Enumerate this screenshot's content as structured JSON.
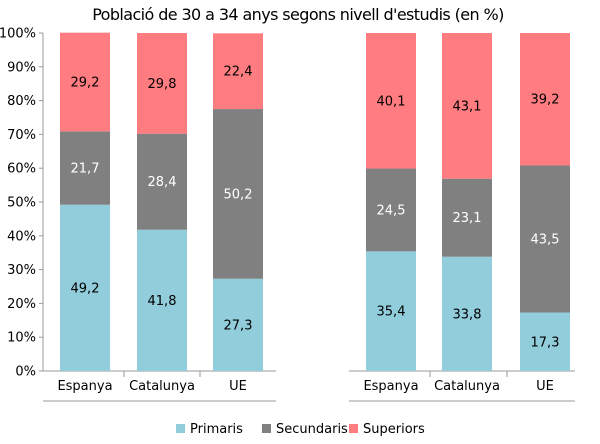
{
  "chart_data": {
    "type": "bar",
    "stacked": true,
    "percent": true,
    "title": "Població de 30 a 34 anys segons nivell d'estudis (en %)",
    "groups": [
      {
        "categories": [
          "Espanya",
          "Catalunya",
          "UE"
        ]
      },
      {
        "categories": [
          "Espanya",
          "Catalunya",
          "UE"
        ]
      }
    ],
    "series": [
      {
        "name": "Primaris",
        "color": "#92cddc",
        "values": [
          [
            49.2,
            41.8,
            27.3
          ],
          [
            35.4,
            33.8,
            17.3
          ]
        ],
        "labels": [
          [
            "49,2",
            "41,8",
            "27,3"
          ],
          [
            "35,4",
            "33,8",
            "17,3"
          ]
        ],
        "label_color": "#000000"
      },
      {
        "name": "Secundaris",
        "color": "#808080",
        "values": [
          [
            21.7,
            28.4,
            50.2
          ],
          [
            24.5,
            23.1,
            43.5
          ]
        ],
        "labels": [
          [
            "21,7",
            "28,4",
            "50,2"
          ],
          [
            "24,5",
            "23,1",
            "43,5"
          ]
        ],
        "label_color": "#ffffff"
      },
      {
        "name": "Superiors",
        "color": "#ff7c80",
        "values": [
          [
            29.2,
            29.8,
            22.4
          ],
          [
            40.1,
            43.1,
            39.2
          ]
        ],
        "labels": [
          [
            "29,2",
            "29,8",
            "22,4"
          ],
          [
            "40,1",
            "43,1",
            "39,2"
          ]
        ],
        "label_color": "#000000"
      }
    ],
    "ylim": [
      0,
      100
    ],
    "yticks": [
      "0%",
      "10%",
      "20%",
      "30%",
      "40%",
      "50%",
      "60%",
      "70%",
      "80%",
      "90%",
      "100%"
    ],
    "xlabel": "",
    "ylabel": "",
    "grid": false,
    "legend_position": "bottom"
  }
}
